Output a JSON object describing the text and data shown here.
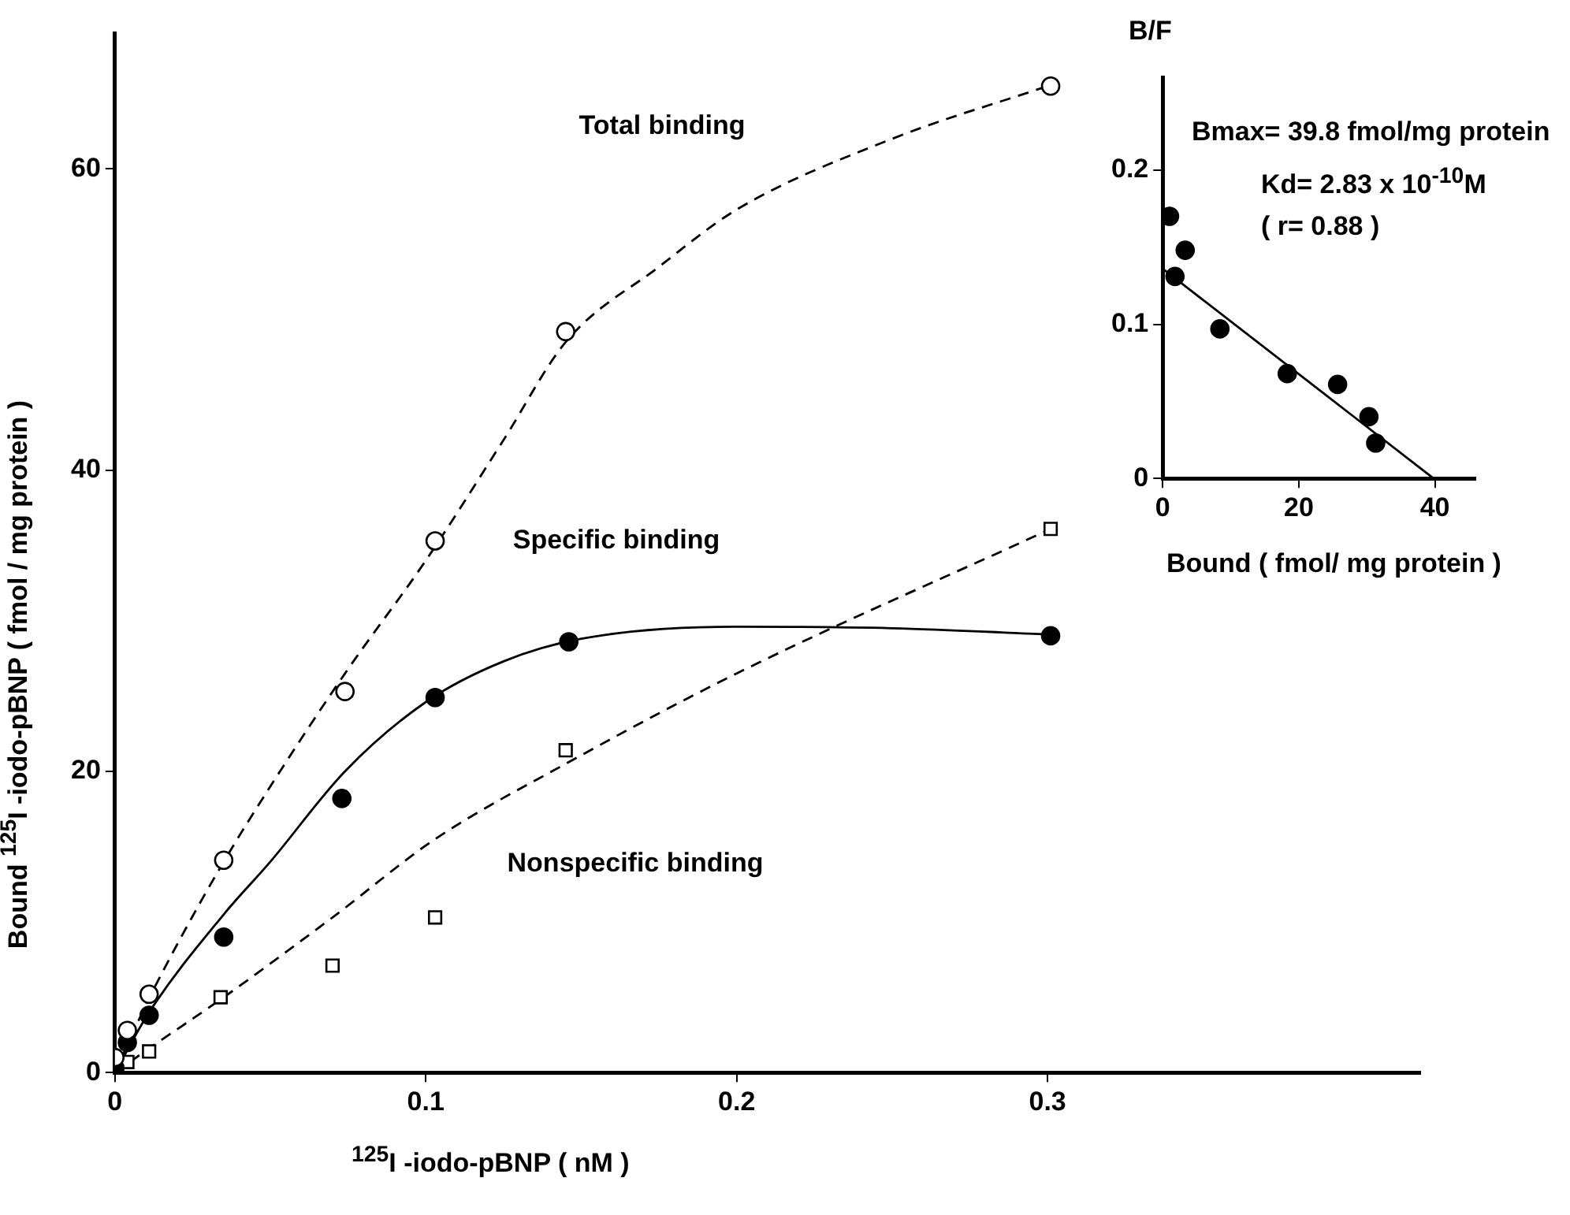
{
  "chart_data": [
    {
      "type": "scatter",
      "xlabel": "$^{125}$I -iodo-pBNP ( nM )",
      "ylabel": "Bound $^{125}$I -iodo-pBNP ( fmol / mg protein )",
      "xlim": [
        0,
        0.42
      ],
      "xticks": [
        0,
        0.1,
        0.2,
        0.3
      ],
      "ylim": [
        0,
        69
      ],
      "yticks": [
        0,
        20,
        40,
        60
      ],
      "grid": false,
      "legend": false,
      "series": [
        {
          "type": "line",
          "color": "#000000",
          "marker": "none",
          "line_style": "dashed",
          "x": [
            0,
            0.01,
            0.02,
            0.035,
            0.05,
            0.074,
            0.1,
            0.125,
            0.145,
            0.175,
            0.2,
            0.25,
            0.3
          ],
          "values": [
            0,
            4.5,
            8.5,
            14,
            19,
            26.5,
            34,
            42,
            48.5,
            53.5,
            57.3,
            62,
            65.5
          ]
        },
        {
          "type": "line",
          "color": "#000000",
          "marker": "none",
          "line_style": "solid",
          "x": [
            0,
            0.011,
            0.035,
            0.05,
            0.074,
            0.1,
            0.125,
            0.15,
            0.2,
            0.25,
            0.3
          ],
          "values": [
            0,
            4,
            10.5,
            14,
            20,
            24.6,
            27.3,
            28.8,
            29.6,
            29.5,
            29.1
          ]
        },
        {
          "type": "line",
          "color": "#000000",
          "marker": "none",
          "line_style": "dashed",
          "x": [
            0,
            0.011,
            0.035,
            0.07,
            0.103,
            0.145,
            0.2,
            0.3
          ],
          "values": [
            0,
            1.6,
            5,
            10.3,
            15.5,
            20.5,
            26.5,
            36
          ]
        },
        {
          "type": "scatter",
          "color": "#ffffff",
          "marker": "circle",
          "x": [
            0,
            0.004,
            0.011,
            0.035,
            0.074,
            0.103,
            0.145,
            0.301
          ],
          "values": [
            1,
            2.8,
            5.2,
            14.1,
            25.3,
            35.3,
            49.2,
            65.5
          ]
        },
        {
          "type": "scatter",
          "color": "#000000",
          "marker": "circle",
          "x": [
            0,
            0.004,
            0.011,
            0.035,
            0.073,
            0.103,
            0.146,
            0.301
          ],
          "values": [
            0.3,
            2,
            3.8,
            9,
            18.2,
            24.9,
            28.6,
            29
          ]
        },
        {
          "type": "scatter",
          "color": "#ffffff",
          "marker": "square",
          "x": [
            0.004,
            0.011,
            0.034,
            0.07,
            0.103,
            0.145,
            0.301
          ],
          "values": [
            0.7,
            1.4,
            5,
            7.1,
            10.3,
            21.4,
            36.1
          ]
        }
      ],
      "annotations": [
        "Total binding",
        "Specific binding",
        "Nonspecific binding"
      ]
    },
    {
      "type": "scatter",
      "xlabel": "Bound ( fmol/ mg protein )",
      "ylabel": "B/F",
      "xlim": [
        0,
        46
      ],
      "xticks": [
        0,
        20,
        40
      ],
      "ylim": [
        0,
        0.26
      ],
      "yticks": [
        0,
        0.1,
        0.2
      ],
      "grid": false,
      "legend": false,
      "series": [
        {
          "type": "line",
          "color": "#000000",
          "marker": "none",
          "line_style": "solid",
          "x": [
            0,
            39.8
          ],
          "values": [
            0.136,
            0
          ]
        },
        {
          "type": "scatter",
          "color": "#000000",
          "marker": "circle",
          "x": [
            1,
            3.3,
            1.8,
            8.4,
            18.3,
            25.7,
            30.3,
            31.3
          ],
          "values": [
            0.17,
            0.148,
            0.131,
            0.097,
            0.068,
            0.061,
            0.04,
            0.023
          ]
        }
      ],
      "annotations": [
        "Bmax= 39.8 fmol/mg protein",
        "Kd= 2.83 x 10$^{-10}$M",
        "( r= 0.88 )"
      ]
    }
  ]
}
